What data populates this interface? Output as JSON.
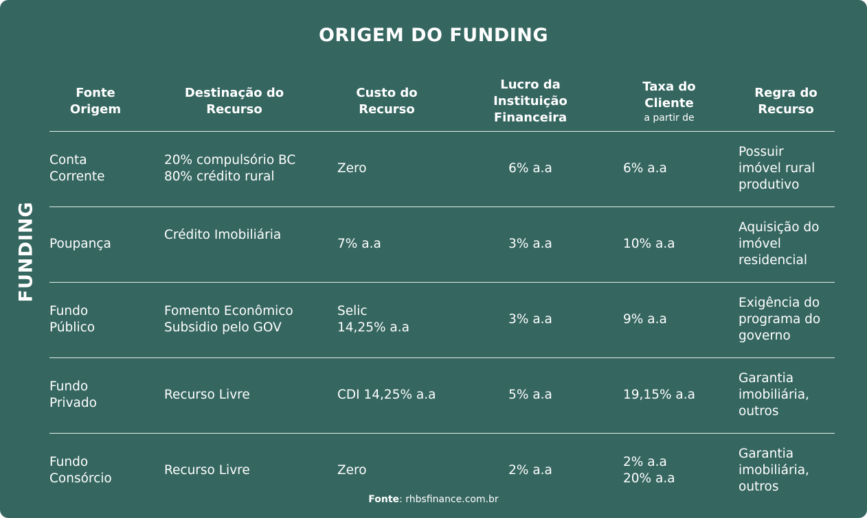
{
  "title": "ORIGEM DO FUNDING",
  "side_label": "FUNDING",
  "columns": [
    {
      "label": "Fonte\nOrigem"
    },
    {
      "label": "Destinação do\nRecurso"
    },
    {
      "label": "Custo do\nRecurso"
    },
    {
      "label": "Lucro da\nInstituição\nFinanceira"
    },
    {
      "label": "Taxa do\nCliente",
      "sub": "a partir de"
    },
    {
      "label": "Regra do\nRecurso"
    }
  ],
  "rows": [
    {
      "fonte": "Conta\nCorrente",
      "destinacao": "20% compulsório BC\n80% crédito rural",
      "custo": "Zero",
      "lucro": "6% a.a",
      "taxa": "6% a.a",
      "regra": "Possuir\nimóvel rural\nprodutivo"
    },
    {
      "fonte": "Poupança",
      "destinacao": "Crédito Imobiliária",
      "custo": "7% a.a",
      "lucro": "3% a.a",
      "taxa": "10% a.a",
      "regra": "Aquisição do\nimóvel\nresidencial"
    },
    {
      "fonte": "Fundo\nPúblico",
      "destinacao": "Fomento Econômico\nSubsidio pelo GOV",
      "custo": "Selic\n14,25% a.a",
      "lucro": "3% a.a",
      "taxa": "9% a.a",
      "regra": "Exigência do\nprograma do\ngoverno"
    },
    {
      "fonte": "Fundo\nPrivado",
      "destinacao": "Recurso Livre",
      "custo": "CDI 14,25% a.a",
      "lucro": "5% a.a",
      "taxa": "19,15% a.a",
      "regra": "Garantia\nimobiliária,\noutros"
    },
    {
      "fonte": "Fundo\nConsórcio",
      "destinacao": "Recurso Livre",
      "custo": "Zero",
      "lucro": "2% a.a",
      "taxa": "2% a.a\n20% a.a",
      "regra": "Garantia\nimobiliária,\noutros"
    }
  ],
  "footer": {
    "label": "Fonte",
    "text": ": rhbsfinance.com.br"
  },
  "colors": {
    "background": "#356660",
    "text": "#ffffff",
    "rule": "#e6efed"
  }
}
